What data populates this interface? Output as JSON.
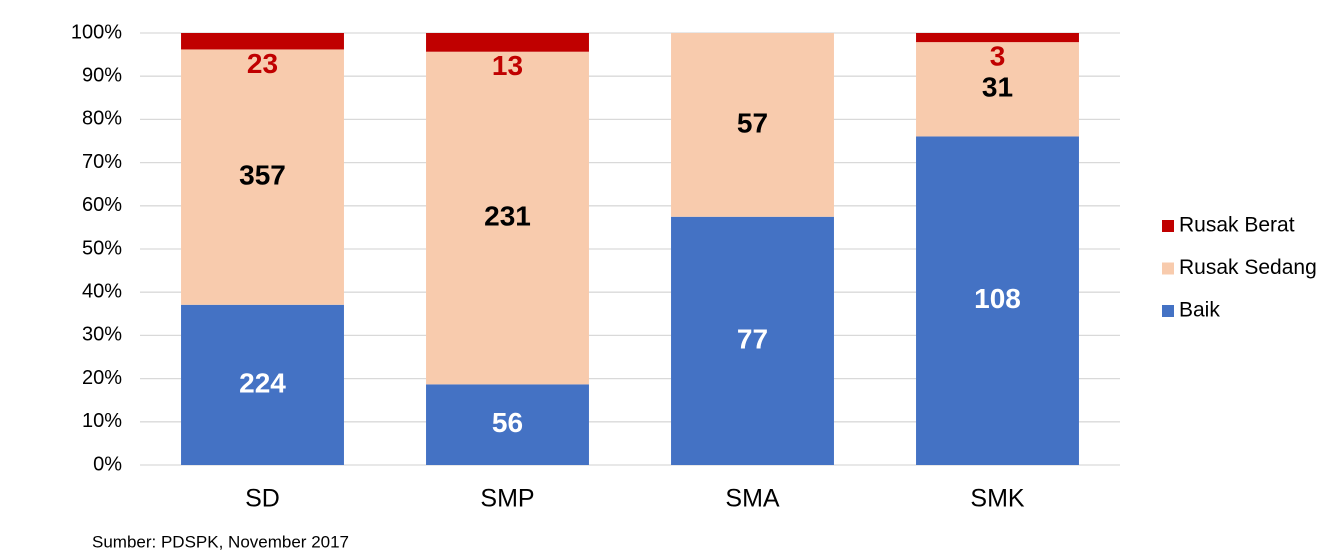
{
  "chart_data": {
    "type": "bar",
    "stacking": "percent",
    "categories": [
      "SD",
      "SMP",
      "SMA",
      "SMK"
    ],
    "series": [
      {
        "name": "Baik",
        "color": "#4472c4",
        "label_color": "#ffffff",
        "values": [
          224,
          56,
          77,
          108
        ]
      },
      {
        "name": "Rusak Sedang",
        "color": "#f8cbad",
        "label_color": "#000000",
        "values": [
          357,
          231,
          57,
          31
        ]
      },
      {
        "name": "Rusak Berat",
        "color": "#c00000",
        "label_color": "#c00000",
        "values": [
          23,
          13,
          null,
          3
        ]
      }
    ],
    "ylim": [
      0,
      100
    ],
    "yticks": [
      {
        "value": 0,
        "label": "0%"
      },
      {
        "value": 10,
        "label": "10%"
      },
      {
        "value": 20,
        "label": "20%"
      },
      {
        "value": 30,
        "label": "30%"
      },
      {
        "value": 40,
        "label": "40%"
      },
      {
        "value": 50,
        "label": "50%"
      },
      {
        "value": 60,
        "label": "60%"
      },
      {
        "value": 70,
        "label": "70%"
      },
      {
        "value": 80,
        "label": "80%"
      },
      {
        "value": 90,
        "label": "90%"
      },
      {
        "value": 100,
        "label": "100%"
      }
    ],
    "grid": true,
    "legend": "right",
    "source": "Sumber: PDSPK, November 2017"
  }
}
